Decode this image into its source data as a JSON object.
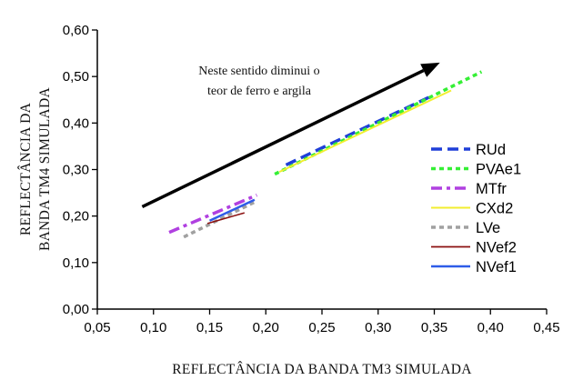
{
  "chart_data": {
    "type": "line",
    "xlabel": "REFLECTÂNCIA DA BANDA TM3 SIMULADA",
    "ylabel_lines": [
      "REFLECTÂNCIA DA",
      "BANDA TM4 SIMULADA"
    ],
    "xlim": [
      0.05,
      0.45
    ],
    "ylim": [
      0.0,
      0.6
    ],
    "x_ticks": [
      "0,05",
      "0,10",
      "0,15",
      "0,20",
      "0,25",
      "0,30",
      "0,35",
      "0,40",
      "0,45"
    ],
    "y_ticks": [
      "0,00",
      "0,10",
      "0,20",
      "0,30",
      "0,40",
      "0,50",
      "0,60"
    ],
    "grid": false,
    "legend_position": "right",
    "annotation": {
      "lines": [
        "Neste sentido diminui o",
        "teor de ferro e argila"
      ],
      "arrow_from": [
        0.09,
        0.22
      ],
      "arrow_to": [
        0.355,
        0.53
      ]
    },
    "series": [
      {
        "name": "RUd",
        "color": "#1f3fd8",
        "dash": "12,6",
        "width": 3.5,
        "x": [
          0.218,
          0.345
        ],
        "y": [
          0.31,
          0.455
        ]
      },
      {
        "name": "PVAe1",
        "color": "#35ef35",
        "dash": "5,4",
        "width": 3.5,
        "x": [
          0.208,
          0.392
        ],
        "y": [
          0.29,
          0.51
        ]
      },
      {
        "name": "MTfr",
        "color": "#b040e0",
        "dash": "12,5,4,5",
        "width": 3.5,
        "x": [
          0.114,
          0.192
        ],
        "y": [
          0.165,
          0.245
        ]
      },
      {
        "name": "CXd2",
        "color": "#f2ee30",
        "dash": "",
        "width": 2,
        "x": [
          0.212,
          0.365
        ],
        "y": [
          0.295,
          0.47
        ]
      },
      {
        "name": "LVe",
        "color": "#a0a0a0",
        "dash": "5,4",
        "width": 3.5,
        "x": [
          0.127,
          0.19
        ],
        "y": [
          0.155,
          0.23
        ]
      },
      {
        "name": "NVef2",
        "color": "#8b1010",
        "dash": "",
        "width": 1.5,
        "x": [
          0.148,
          0.181
        ],
        "y": [
          0.184,
          0.207
        ]
      },
      {
        "name": "NVef1",
        "color": "#2e5ce8",
        "dash": "",
        "width": 2.5,
        "x": [
          0.15,
          0.19
        ],
        "y": [
          0.19,
          0.235
        ]
      }
    ]
  }
}
